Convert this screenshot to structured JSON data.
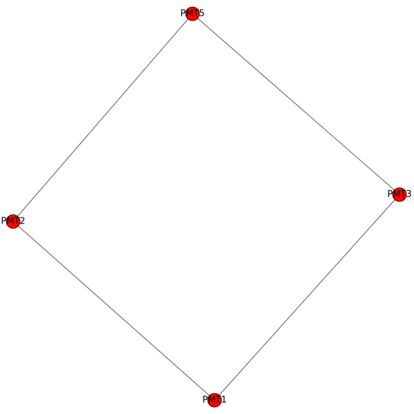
{
  "graph": {
    "node_color": "#ff0000",
    "edge_color": "#555555",
    "nodes": [
      {
        "id": "PMT5",
        "label": "PMT5"
      },
      {
        "id": "PMT3",
        "label": "PMT3"
      },
      {
        "id": "PMT2",
        "label": "PMT2"
      },
      {
        "id": "PMT1",
        "label": "PMT1"
      }
    ],
    "edges": [
      {
        "source": "PMT5",
        "target": "PMT3"
      },
      {
        "source": "PMT5",
        "target": "PMT2"
      },
      {
        "source": "PMT3",
        "target": "PMT1"
      },
      {
        "source": "PMT2",
        "target": "PMT1"
      }
    ]
  }
}
